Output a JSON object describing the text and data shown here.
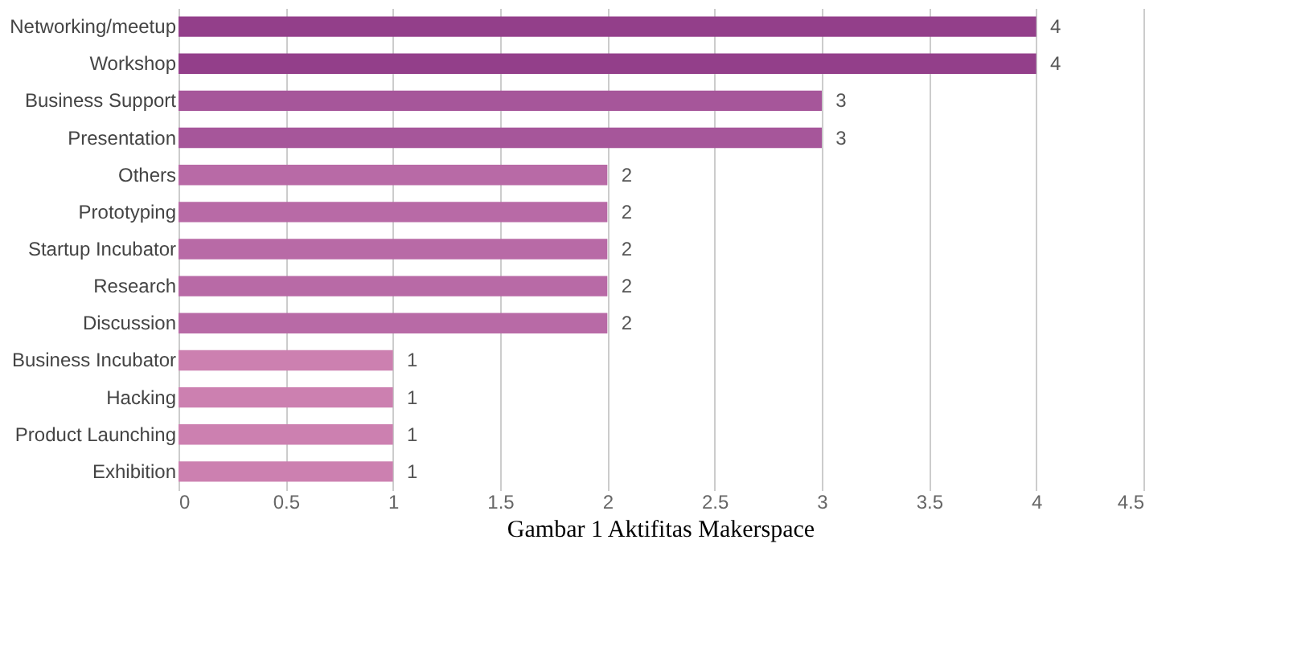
{
  "chart_data": {
    "type": "bar",
    "orientation": "horizontal",
    "categories": [
      "Networking/meetup",
      "Workshop",
      "Business Support",
      "Presentation",
      "Others",
      "Prototyping",
      "Startup Incubator",
      "Research",
      "Discussion",
      "Business Incubator",
      "Hacking",
      "Product Launching",
      "Exhibition"
    ],
    "values": [
      4,
      4,
      3,
      3,
      2,
      2,
      2,
      2,
      2,
      1,
      1,
      1,
      1
    ],
    "colors": [
      "#933f8a",
      "#933f8a",
      "#a6569a",
      "#a6569a",
      "#b86aa6",
      "#b86aa6",
      "#b86aa6",
      "#b86aa6",
      "#b86aa6",
      "#cc80b0",
      "#cc80b0",
      "#cc80b0",
      "#cc80b0"
    ],
    "xlim": [
      0,
      4.5
    ],
    "xticks": [
      0,
      0.5,
      1,
      1.5,
      2,
      2.5,
      3,
      3.5,
      4,
      4.5
    ],
    "grid": "x",
    "data_labels": true,
    "annotations": [
      "Gambar 1 Aktifitas Makerspace"
    ]
  }
}
